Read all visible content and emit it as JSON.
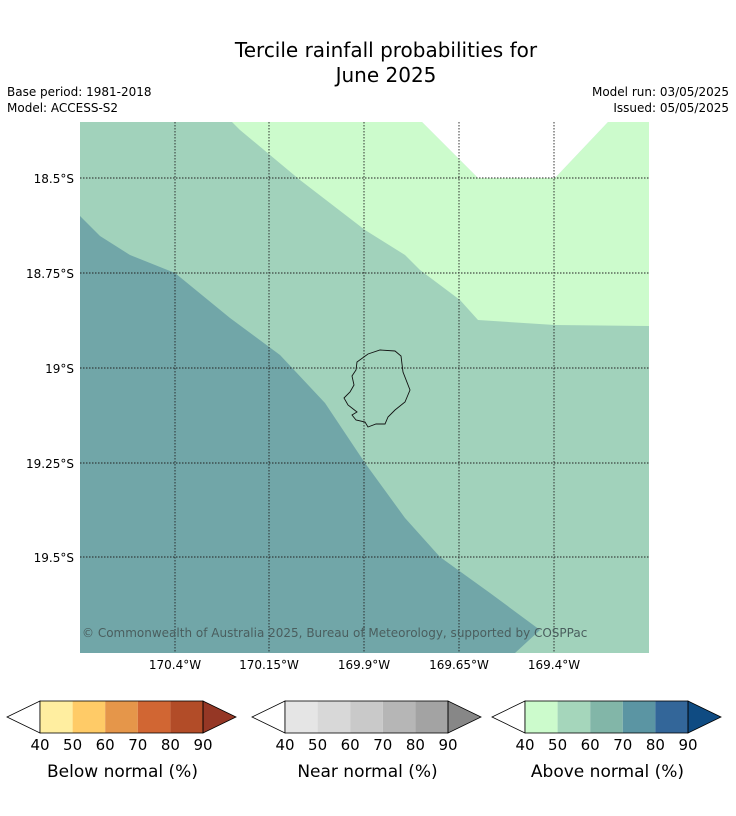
{
  "title_line1": "Tercile rainfall probabilities for",
  "title_line2": "June 2025",
  "base_period": "Base period: 1981-2018",
  "model": "Model: ACCESS-S2",
  "model_run": "Model run: 03/05/2025",
  "issued": "Issued: 05/05/2025",
  "map": {
    "lat_labels": [
      "18.5°S",
      "18.75°S",
      "19°S",
      "19.25°S",
      "19.5°S"
    ],
    "lon_labels": [
      "170.4°W",
      "170.15°W",
      "169.9°W",
      "169.65°W",
      "169.4°W"
    ],
    "copyright": "© Commonwealth of Australia 2025, Bureau of Meteorology, supported by COSPPac",
    "zone_colors": {
      "above_50_60": "#a1d2bb",
      "above_40_50": "#ccfbcc",
      "above_60_70": "#71a6a8",
      "white": "#ffffff"
    }
  },
  "colorbars": [
    {
      "label": "Below normal (%)",
      "ticks": [
        "40",
        "50",
        "60",
        "70",
        "80",
        "90"
      ],
      "colors": [
        "#ffeea0",
        "#ffcb67",
        "#e5964a",
        "#d16633",
        "#b24c28",
        "#953725"
      ]
    },
    {
      "label": "Near normal (%)",
      "ticks": [
        "40",
        "50",
        "60",
        "70",
        "80",
        "90"
      ],
      "colors": [
        "#e5e5e5",
        "#d8d8d8",
        "#c9c9c9",
        "#b6b6b6",
        "#a3a3a3",
        "#878787"
      ]
    },
    {
      "label": "Above normal (%)",
      "ticks": [
        "40",
        "50",
        "60",
        "70",
        "80",
        "90"
      ],
      "colors": [
        "#ccfbcc",
        "#a5d6bb",
        "#82b6a8",
        "#5b95a3",
        "#336699",
        "#0f4b82"
      ]
    }
  ]
}
